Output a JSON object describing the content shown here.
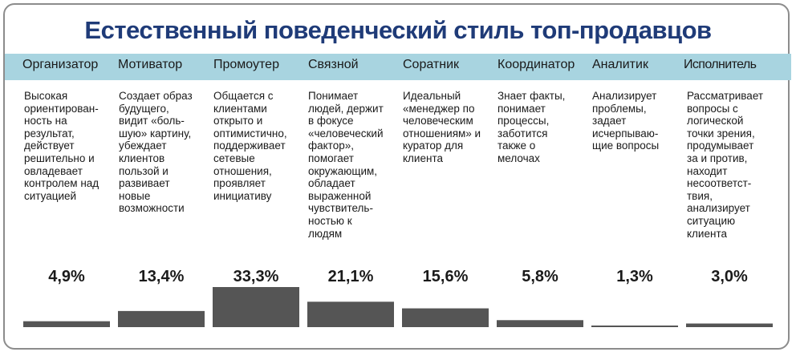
{
  "title": "Естественный поведенческий стиль топ-продавцов",
  "colors": {
    "title": "#1f3b78",
    "header_band": "#a8d4e0",
    "bar": "#555555",
    "border": "#8c8c8c"
  },
  "chart_data": {
    "type": "bar",
    "title": "Естественный поведенческий стиль топ-продавцов",
    "categories": [
      "Организатор",
      "Мотиватор",
      "Промоутер",
      "Связной",
      "Соратник",
      "Координатор",
      "Аналитик",
      "Исполнитель"
    ],
    "values": [
      4.9,
      13.4,
      33.3,
      21.1,
      15.6,
      5.8,
      1.3,
      3.0
    ],
    "value_labels": [
      "4,9%",
      "13,4%",
      "33,3%",
      "21,1%",
      "15,6%",
      "5,8%",
      "1,3%",
      "3,0%"
    ],
    "descriptions": [
      "Высокая\nориентирован-\nность на\nрезультат,\nдействует\nрешительно и\nовладевает\nконтролем над\nситуацией",
      "Создает образ\nбудущего,\nвидит «боль-\nшую» картину,\nубеждает\nклиентов\nпользой и\nразвивает\nновые\nвозможности",
      "Общается с\nклиентами\nоткрыто и\nоптимистично,\nподдерживает\nсетевые\nотношения,\nпроявляет\nинициативу",
      "Понимает\nлюдей, держит\nв фокусе\n«человеческий\nфактор»,\nпомогает\nокружающим,\nобладает\nвыраженной\nчувствитель-\nностью к\nлюдям",
      "Идеальный\n«менеджер по\nчеловеческим\nотношениям» и\nкуратор для\nклиента",
      "Знает факты,\nпонимает\nпроцессы,\nзаботится\nтакже о\nмелочах",
      "Анализирует\nпроблемы,\nзадает\nисчерпываю-\nщие вопросы",
      "Рассматривает\nвопросы с\nлогической\nточки зрения,\nпродумывает\nза и против,\nнаходит\nнесоответст-\nтвия,\nанализирует\nситуацию\nклиента"
    ],
    "ylim": [
      0,
      33.3
    ],
    "xlabel": "",
    "ylabel": "",
    "grid": false,
    "legend": "none"
  }
}
